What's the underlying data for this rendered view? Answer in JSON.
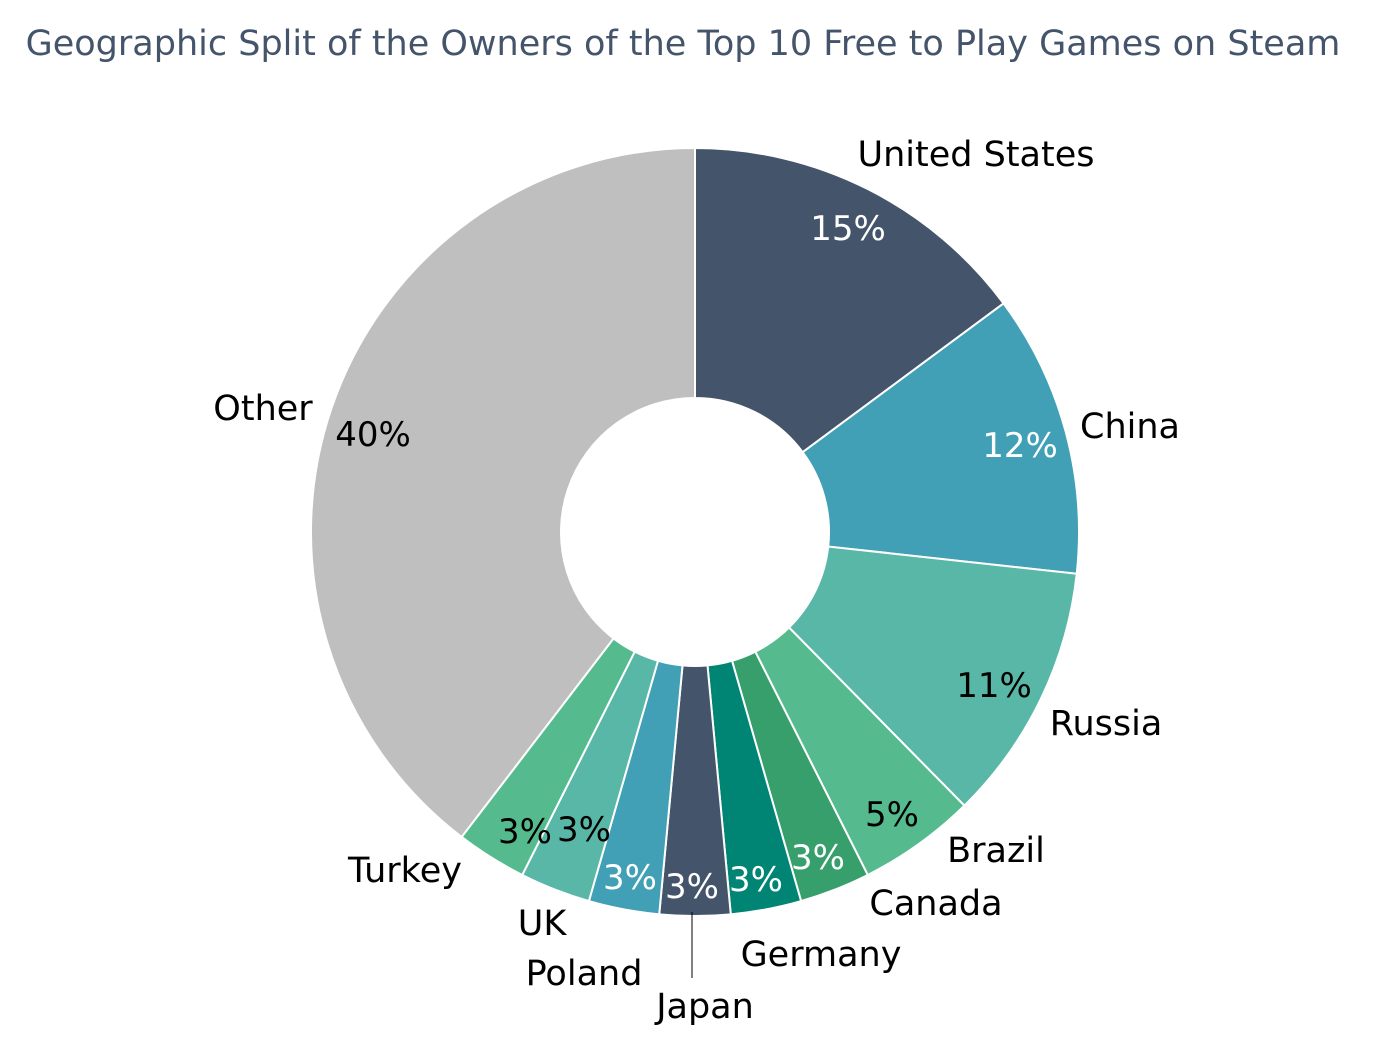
{
  "chart_data": {
    "type": "pie",
    "title": "Geographic Split of the Owners of the Top 10 Free to Play Games on Steam",
    "donut": true,
    "slices": [
      {
        "label": "United States",
        "value": 15,
        "value_label": "15%",
        "color": "#44546a",
        "value_color": "#ffffff"
      },
      {
        "label": "China",
        "value": 12,
        "value_label": "12%",
        "color": "#41a0b5",
        "value_color": "#ffffff"
      },
      {
        "label": "Russia",
        "value": 11,
        "value_label": "11%",
        "color": "#58b7a6",
        "value_color": "#000000"
      },
      {
        "label": "Brazil",
        "value": 5,
        "value_label": "5%",
        "color": "#55bb8f",
        "value_color": "#000000"
      },
      {
        "label": "Canada",
        "value": 3,
        "value_label": "3%",
        "color": "#369f6c",
        "value_color": "#ffffff"
      },
      {
        "label": "Germany",
        "value": 3,
        "value_label": "3%",
        "color": "#008575",
        "value_color": "#ffffff"
      },
      {
        "label": "Japan",
        "value": 3,
        "value_label": "3%",
        "color": "#44546a",
        "value_color": "#ffffff"
      },
      {
        "label": "Poland",
        "value": 3,
        "value_label": "3%",
        "color": "#41a0b5",
        "value_color": "#ffffff"
      },
      {
        "label": "UK",
        "value": 3,
        "value_label": "3%",
        "color": "#58b7a6",
        "value_color": "#000000"
      },
      {
        "label": "Turkey",
        "value": 3,
        "value_label": "3%",
        "color": "#55bb8f",
        "value_color": "#000000"
      },
      {
        "label": "Other",
        "value": 40,
        "value_label": "40%",
        "color": "#bfbfbf",
        "value_color": "#000000"
      }
    ]
  }
}
